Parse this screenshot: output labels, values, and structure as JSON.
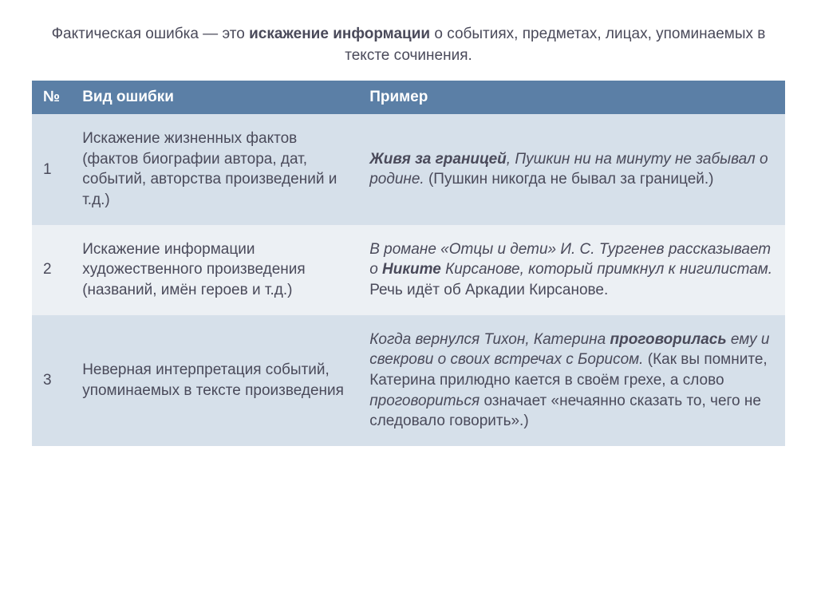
{
  "title_pre": "Фактическая ошибка — это ",
  "title_bold": "искажение информации",
  "title_post": " о событиях, предметах, лицах, упоминаемых в тексте сочинения.",
  "headers": {
    "num": "№",
    "type": "Вид ошибки",
    "example": "Пример"
  },
  "rows": [
    {
      "num": "1",
      "type": "Искажение жизненных фактов (фактов биографии автора, дат, событий, авторства произведений и т.д.)",
      "ex_bi1": "Живя за границей",
      "ex_plain1": ", Пушкин ни на минуту не забывал о родине.",
      "ex_note": " (Пушкин никогда не бывал за границей.)"
    },
    {
      "num": "2",
      "type": "Искажение информации художественного произведения (названий, имён героев и т.д.)",
      "ex_pre": "В романе «Отцы и дети» И. С. Тургенев рассказывает о ",
      "ex_bi1": "Никите",
      "ex_post": " Кирсанове, который примкнул к нигилистам.",
      "ex_note": " Речь идёт об Аркадии Кирсанове."
    },
    {
      "num": "3",
      "type": "Неверная интерпретация событий, упоминаемых в тексте произведения",
      "ex_pre": "Когда вернулся Тихон, Катерина ",
      "ex_bi1": "проговорилась",
      "ex_post": " ему и свекрови о своих встречах с Борисом.",
      "ex_note": " (Как вы помните, Катерина прилюдно кается в своём грехе, а слово ",
      "ex_note_it": "проговориться",
      "ex_note2": " означает «нечаянно сказать то, чего не следовало говорить».)"
    }
  ],
  "colors": {
    "header_bg": "#5b7fa6",
    "row_even_bg": "#d6e0ea",
    "row_odd_bg": "#ecf0f4",
    "text": "#4a4a5a"
  }
}
